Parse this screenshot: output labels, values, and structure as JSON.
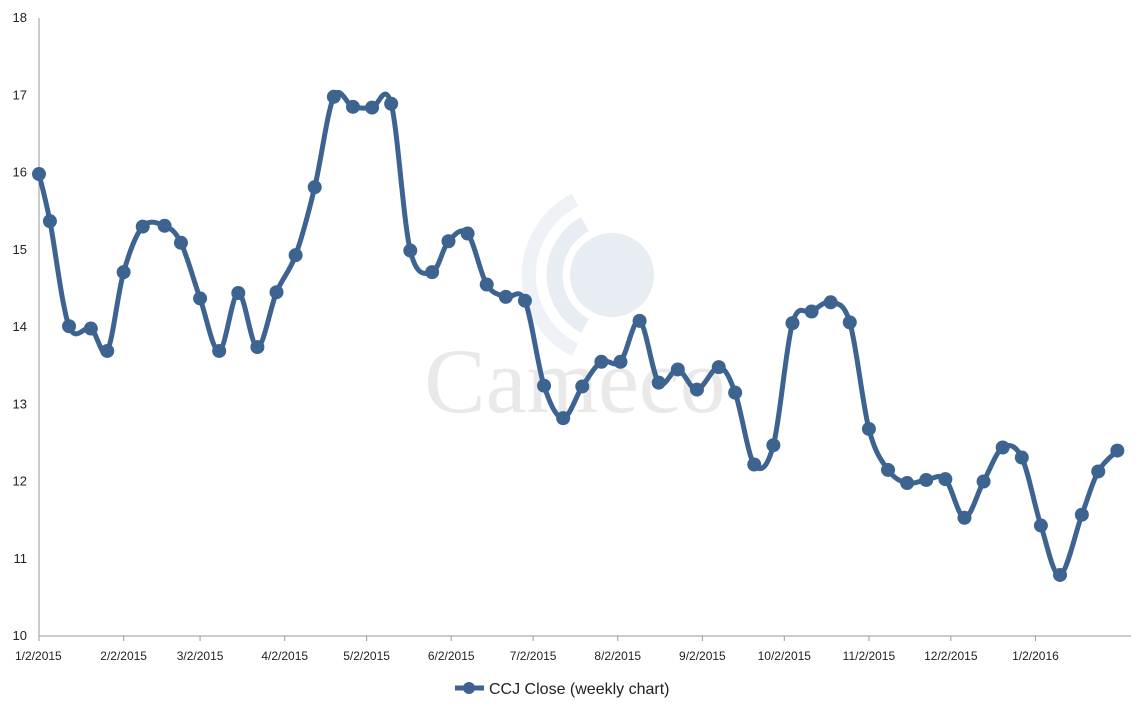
{
  "chart_data": {
    "type": "line",
    "title": "",
    "xlabel": "",
    "ylabel": "",
    "ylim": [
      10,
      18
    ],
    "yticks": [
      "10",
      "11",
      "12",
      "13",
      "14",
      "15",
      "16",
      "17",
      "18"
    ],
    "xtick_labels": [
      "1/2/2015",
      "2/2/2015",
      "3/2/2015",
      "4/2/2015",
      "5/2/2015",
      "6/2/2015",
      "7/2/2015",
      "8/2/2015",
      "9/2/2015",
      "10/2/2015",
      "11/2/2015",
      "12/2/2015",
      "1/2/2016"
    ],
    "xtick_dates": [
      "2015-01-02",
      "2015-02-02",
      "2015-03-02",
      "2015-04-02",
      "2015-05-02",
      "2015-06-02",
      "2015-07-02",
      "2015-08-02",
      "2015-09-02",
      "2015-10-02",
      "2015-11-02",
      "2015-12-02",
      "2016-01-02"
    ],
    "xlim": [
      "2015-01-02",
      "2016-02-06"
    ],
    "grid": false,
    "legend_position": "bottom-center",
    "series": [
      {
        "name": "CCJ Close (weekly chart)",
        "color": "#3d6391",
        "x": [
          "2015-01-02",
          "2015-01-06",
          "2015-01-13",
          "2015-01-21",
          "2015-01-27",
          "2015-02-02",
          "2015-02-09",
          "2015-02-17",
          "2015-02-23",
          "2015-03-02",
          "2015-03-09",
          "2015-03-16",
          "2015-03-23",
          "2015-03-30",
          "2015-04-06",
          "2015-04-13",
          "2015-04-20",
          "2015-04-27",
          "2015-05-04",
          "2015-05-11",
          "2015-05-18",
          "2015-05-26",
          "2015-06-01",
          "2015-06-08",
          "2015-06-15",
          "2015-06-22",
          "2015-06-29",
          "2015-07-06",
          "2015-07-13",
          "2015-07-20",
          "2015-07-27",
          "2015-08-03",
          "2015-08-10",
          "2015-08-17",
          "2015-08-24",
          "2015-08-31",
          "2015-09-08",
          "2015-09-14",
          "2015-09-21",
          "2015-09-28",
          "2015-10-05",
          "2015-10-12",
          "2015-10-19",
          "2015-10-26",
          "2015-11-02",
          "2015-11-09",
          "2015-11-16",
          "2015-11-23",
          "2015-11-30",
          "2015-12-07",
          "2015-12-14",
          "2015-12-21",
          "2015-12-28",
          "2016-01-04",
          "2016-01-11",
          "2016-01-19",
          "2016-01-25",
          "2016-02-01"
        ],
        "values": [
          15.98,
          15.37,
          14.01,
          13.98,
          13.69,
          14.71,
          15.3,
          15.31,
          15.09,
          14.37,
          13.69,
          14.44,
          13.74,
          14.45,
          14.93,
          15.81,
          16.98,
          16.85,
          16.84,
          16.89,
          14.99,
          14.71,
          15.11,
          15.21,
          14.55,
          14.39,
          14.34,
          13.24,
          12.82,
          13.23,
          13.55,
          13.55,
          14.08,
          13.28,
          13.45,
          13.19,
          13.48,
          13.15,
          12.22,
          12.47,
          14.05,
          14.2,
          14.32,
          14.06,
          12.68,
          12.15,
          11.98,
          12.02,
          12.03,
          11.53,
          12.0,
          12.44,
          12.31,
          11.43,
          10.79,
          11.57,
          12.13,
          12.4
        ]
      }
    ]
  },
  "watermark": {
    "text": "Cameco",
    "color": "#e9e9e9"
  }
}
